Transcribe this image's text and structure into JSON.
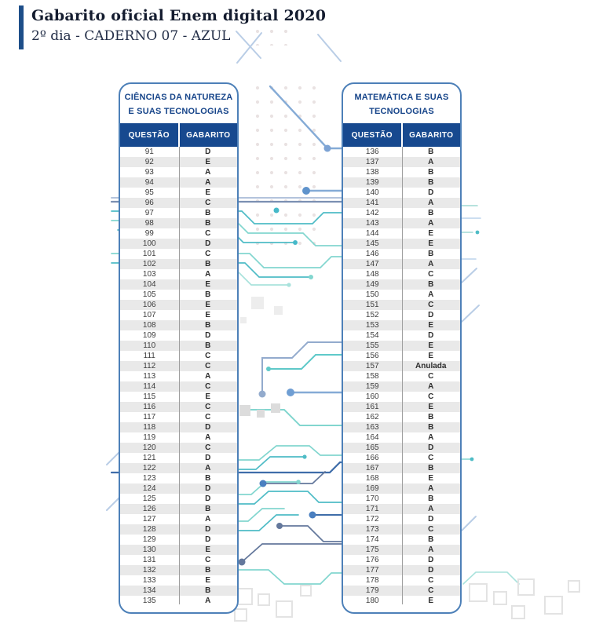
{
  "header": {
    "title": "Gabarito oficial Enem digital 2020",
    "subtitle": "2º dia - CADERNO 07 - AZUL"
  },
  "colors": {
    "navy": "#17498f",
    "navy-dark": "#1d4e89",
    "border-blue": "#4d80b8",
    "title-blue": "#17458a",
    "row-alt": "#e9e9e9",
    "teal-accent": "#4fbcc6"
  },
  "tables": [
    {
      "title_line1": "CIÊNCIAS DA NATUREZA",
      "title_line2": "E SUAS TECNOLOGIAS",
      "col_question": "QUESTÃO",
      "col_answer": "GABARITO",
      "rows": [
        {
          "q": "91",
          "a": "D"
        },
        {
          "q": "92",
          "a": "E"
        },
        {
          "q": "93",
          "a": "A"
        },
        {
          "q": "94",
          "a": "A"
        },
        {
          "q": "95",
          "a": "E"
        },
        {
          "q": "96",
          "a": "C"
        },
        {
          "q": "97",
          "a": "B"
        },
        {
          "q": "98",
          "a": "B"
        },
        {
          "q": "99",
          "a": "C"
        },
        {
          "q": "100",
          "a": "D"
        },
        {
          "q": "101",
          "a": "C"
        },
        {
          "q": "102",
          "a": "B"
        },
        {
          "q": "103",
          "a": "A"
        },
        {
          "q": "104",
          "a": "E"
        },
        {
          "q": "105",
          "a": "B"
        },
        {
          "q": "106",
          "a": "E"
        },
        {
          "q": "107",
          "a": "E"
        },
        {
          "q": "108",
          "a": "B"
        },
        {
          "q": "109",
          "a": "D"
        },
        {
          "q": "110",
          "a": "B"
        },
        {
          "q": "111",
          "a": "C"
        },
        {
          "q": "112",
          "a": "C"
        },
        {
          "q": "113",
          "a": "A"
        },
        {
          "q": "114",
          "a": "C"
        },
        {
          "q": "115",
          "a": "E"
        },
        {
          "q": "116",
          "a": "C"
        },
        {
          "q": "117",
          "a": "C"
        },
        {
          "q": "118",
          "a": "D"
        },
        {
          "q": "119",
          "a": "A"
        },
        {
          "q": "120",
          "a": "C"
        },
        {
          "q": "121",
          "a": "D"
        },
        {
          "q": "122",
          "a": "A"
        },
        {
          "q": "123",
          "a": "B"
        },
        {
          "q": "124",
          "a": "D"
        },
        {
          "q": "125",
          "a": "D"
        },
        {
          "q": "126",
          "a": "B"
        },
        {
          "q": "127",
          "a": "A"
        },
        {
          "q": "128",
          "a": "D"
        },
        {
          "q": "129",
          "a": "D"
        },
        {
          "q": "130",
          "a": "E"
        },
        {
          "q": "131",
          "a": "C"
        },
        {
          "q": "132",
          "a": "B"
        },
        {
          "q": "133",
          "a": "E"
        },
        {
          "q": "134",
          "a": "B"
        },
        {
          "q": "135",
          "a": "A"
        }
      ]
    },
    {
      "title_line1": "MATEMÁTICA E SUAS",
      "title_line2": "TECNOLOGIAS",
      "col_question": "QUESTÃO",
      "col_answer": "GABARITO",
      "rows": [
        {
          "q": "136",
          "a": "B"
        },
        {
          "q": "137",
          "a": "A"
        },
        {
          "q": "138",
          "a": "B"
        },
        {
          "q": "139",
          "a": "B"
        },
        {
          "q": "140",
          "a": "D"
        },
        {
          "q": "141",
          "a": "A"
        },
        {
          "q": "142",
          "a": "B"
        },
        {
          "q": "143",
          "a": "A"
        },
        {
          "q": "144",
          "a": "E"
        },
        {
          "q": "145",
          "a": "E"
        },
        {
          "q": "146",
          "a": "B"
        },
        {
          "q": "147",
          "a": "A"
        },
        {
          "q": "148",
          "a": "C"
        },
        {
          "q": "149",
          "a": "B"
        },
        {
          "q": "150",
          "a": "A"
        },
        {
          "q": "151",
          "a": "C"
        },
        {
          "q": "152",
          "a": "D"
        },
        {
          "q": "153",
          "a": "E"
        },
        {
          "q": "154",
          "a": "D"
        },
        {
          "q": "155",
          "a": "E"
        },
        {
          "q": "156",
          "a": "E"
        },
        {
          "q": "157",
          "a": "Anulada"
        },
        {
          "q": "158",
          "a": "C"
        },
        {
          "q": "159",
          "a": "A"
        },
        {
          "q": "160",
          "a": "C"
        },
        {
          "q": "161",
          "a": "E"
        },
        {
          "q": "162",
          "a": "B"
        },
        {
          "q": "163",
          "a": "B"
        },
        {
          "q": "164",
          "a": "A"
        },
        {
          "q": "165",
          "a": "D"
        },
        {
          "q": "166",
          "a": "C"
        },
        {
          "q": "167",
          "a": "B"
        },
        {
          "q": "168",
          "a": "E"
        },
        {
          "q": "169",
          "a": "A"
        },
        {
          "q": "170",
          "a": "B"
        },
        {
          "q": "171",
          "a": "A"
        },
        {
          "q": "172",
          "a": "D"
        },
        {
          "q": "173",
          "a": "C"
        },
        {
          "q": "174",
          "a": "B"
        },
        {
          "q": "175",
          "a": "A"
        },
        {
          "q": "176",
          "a": "D"
        },
        {
          "q": "177",
          "a": "D"
        },
        {
          "q": "178",
          "a": "C"
        },
        {
          "q": "179",
          "a": "C"
        },
        {
          "q": "180",
          "a": "E"
        }
      ]
    }
  ]
}
